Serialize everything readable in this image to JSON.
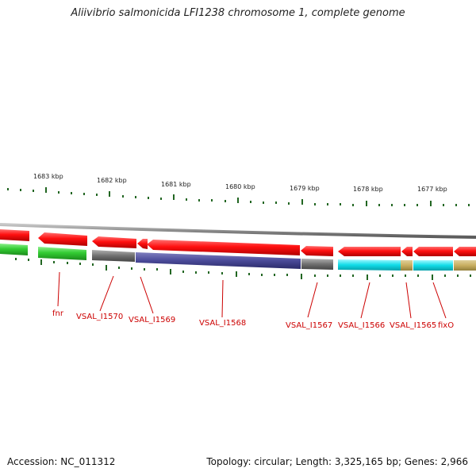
{
  "title": "Aliivibrio salmonicida LFI1238 chromosome 1, complete genome",
  "scale_labels": [
    "1683 kbp",
    "1682 kbp",
    "1681 kbp",
    "1680 kbp",
    "1679 kbp",
    "1678 kbp",
    "1677 kbp"
  ],
  "gene_labels": [
    "fnr",
    "VSAL_I1570",
    "VSAL_I1569",
    "VSAL_I1568",
    "VSAL_I1567",
    "VSAL_I1566",
    "VSAL_I1565",
    "fixO"
  ],
  "footer": {
    "accession": "Accession: NC_011312",
    "topology": "Topology: circular; Length: 3,325,165 bp; Genes: 2,966"
  },
  "colors": {
    "forward_gene": "#ee1111",
    "reverse_gene": "#33cc33",
    "backbone": "#888888",
    "tick": "#226622",
    "label": "#cc0000"
  }
}
